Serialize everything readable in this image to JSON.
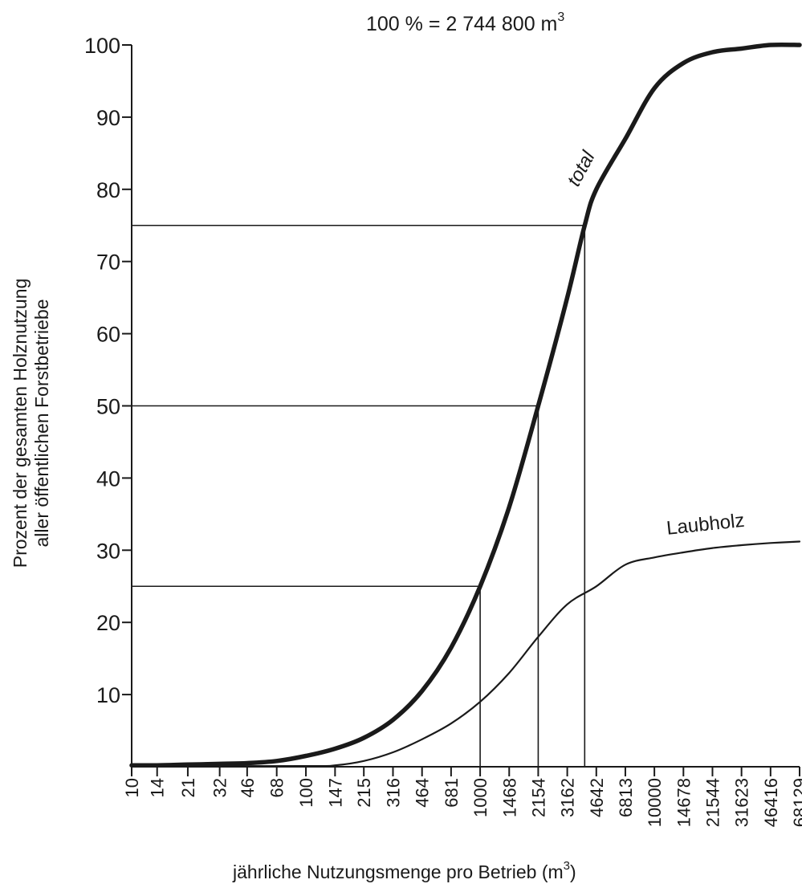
{
  "chart_data": {
    "type": "line",
    "title": "100 % = 2 744 800 m",
    "title_superscript": "3",
    "xlabel": "jährliche Nutzungsmenge pro Betrieb (m",
    "xlabel_superscript": "3",
    "xlabel_suffix": ")",
    "ylabel_lines": [
      "Prozent der gesamten Holznutzung",
      "aller öffentlichen Forstbetriebe"
    ],
    "x_scale": "log",
    "x_ticks": [
      "10",
      "14",
      "21",
      "32",
      "46",
      "68",
      "100",
      "147",
      "215",
      "316",
      "464",
      "681",
      "1000",
      "1468",
      "2154",
      "3162",
      "4642",
      "6813",
      "10000",
      "14678",
      "21544",
      "31623",
      "46416",
      "68129"
    ],
    "xlim": [
      10,
      68129
    ],
    "y_ticks": [
      "10",
      "20",
      "30",
      "40",
      "50",
      "60",
      "70",
      "80",
      "90",
      "100"
    ],
    "ylim": [
      0,
      100
    ],
    "grid": false,
    "reference_levels": [
      25,
      50,
      75
    ],
    "reference_x": [
      1000,
      2154,
      3981
    ],
    "series": [
      {
        "name": "total",
        "color": "#1a1a1a",
        "points": [
          [
            10,
            0.2
          ],
          [
            14,
            0.2
          ],
          [
            21,
            0.3
          ],
          [
            32,
            0.4
          ],
          [
            46,
            0.5
          ],
          [
            68,
            0.8
          ],
          [
            100,
            1.5
          ],
          [
            147,
            2.5
          ],
          [
            215,
            4
          ],
          [
            316,
            6.5
          ],
          [
            464,
            10.5
          ],
          [
            681,
            16.5
          ],
          [
            1000,
            25
          ],
          [
            1468,
            36
          ],
          [
            2154,
            50
          ],
          [
            3162,
            65
          ],
          [
            3981,
            75
          ],
          [
            4642,
            80
          ],
          [
            6813,
            87
          ],
          [
            10000,
            94
          ],
          [
            14678,
            97.5
          ],
          [
            21544,
            99
          ],
          [
            31623,
            99.5
          ],
          [
            46416,
            100
          ],
          [
            68129,
            100
          ]
        ]
      },
      {
        "name": "Laubholz",
        "color": "#1a1a1a",
        "points": [
          [
            10,
            0.1
          ],
          [
            100,
            0.1
          ],
          [
            147,
            0.2
          ],
          [
            215,
            0.8
          ],
          [
            316,
            2
          ],
          [
            464,
            3.8
          ],
          [
            681,
            6
          ],
          [
            1000,
            9
          ],
          [
            1468,
            13
          ],
          [
            2154,
            18
          ],
          [
            3162,
            22.5
          ],
          [
            4642,
            25
          ],
          [
            6813,
            28
          ],
          [
            10000,
            29
          ],
          [
            14678,
            29.7
          ],
          [
            21544,
            30.3
          ],
          [
            31623,
            30.7
          ],
          [
            46416,
            31
          ],
          [
            68129,
            31.2
          ]
        ]
      }
    ]
  }
}
